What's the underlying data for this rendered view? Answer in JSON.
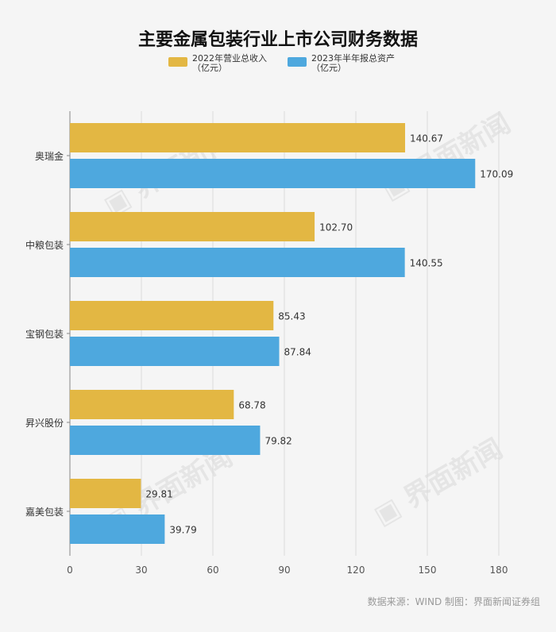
{
  "chart_data": {
    "type": "bar",
    "orientation": "horizontal",
    "title": "主要金属包装行业上市公司财务数据",
    "categories": [
      "奥瑞金",
      "中粮包装",
      "宝钢包装",
      "昇兴股份",
      "嘉美包装"
    ],
    "series": [
      {
        "name": "2022年营业总收入\n（亿元）",
        "name_line1": "2022年营业总收入",
        "name_line2": "（亿元）",
        "color": "#e3b743",
        "values": [
          140.67,
          102.7,
          85.43,
          68.78,
          29.81
        ],
        "labels": [
          "140.67",
          "102.70",
          "85.43",
          "68.78",
          "29.81"
        ]
      },
      {
        "name": "2023年半年报总资产\n（亿元）",
        "name_line1": "2023年半年报总资产",
        "name_line2": "（亿元）",
        "color": "#4ea8de",
        "values": [
          170.09,
          140.55,
          87.84,
          79.82,
          39.79
        ],
        "labels": [
          "170.09",
          "140.55",
          "87.84",
          "79.82",
          "39.79"
        ]
      }
    ],
    "xlim": [
      0,
      180
    ],
    "xticks": [
      0,
      30,
      60,
      90,
      120,
      150,
      180
    ],
    "grid": true,
    "legend_position": "top-center"
  },
  "source": "数据来源：WIND 制图：界面新闻证券组",
  "watermark": "界面新闻"
}
